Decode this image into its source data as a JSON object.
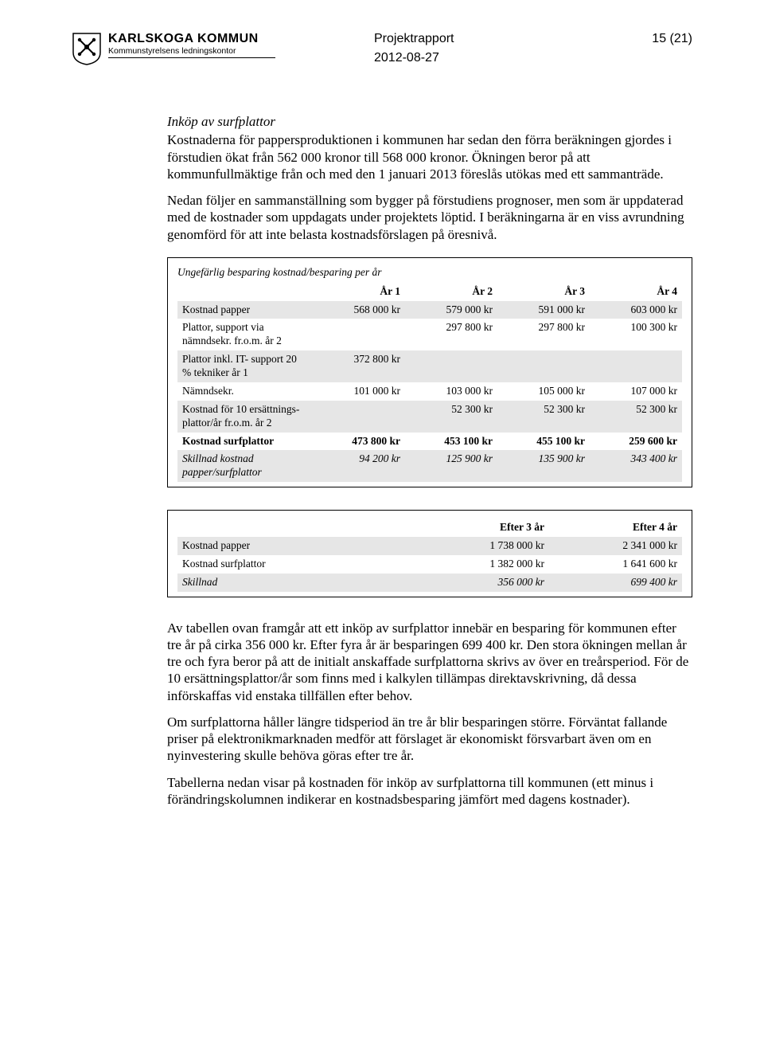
{
  "header": {
    "org_name": "KARLSKOGA KOMMUN",
    "org_unit": "Kommunstyrelsens ledningskontor",
    "doc_title": "Projektrapport",
    "page": "15 (21)",
    "date": "2012-08-27"
  },
  "section_title": "Inköp av surfplattor",
  "para1": "Kostnaderna för pappersproduktionen i kommunen har sedan den förra beräkningen gjordes i förstudien ökat från 562 000 kronor till 568 000 kronor. Ökningen beror på att kommunfullmäktige från och med den 1 januari 2013 föreslås utökas med ett sammanträde.",
  "para2": "Nedan följer en sammanställning som bygger på förstudiens prognoser, men som är uppdaterad med de kostnader som uppdagats under projektets löptid. I beräkningarna är en viss avrundning genomförd för att inte belasta kostnadsförslagen på öresnivå.",
  "table1": {
    "caption": "Ungefärlig besparing kostnad/besparing per år",
    "headers": [
      "",
      "År 1",
      "År 2",
      "År 3",
      "År 4"
    ],
    "rows": [
      {
        "label": "Kostnad papper",
        "cells": [
          "568 000 kr",
          "579 000 kr",
          "591 000 kr",
          "603 000 kr"
        ],
        "shaded": true,
        "bold": false
      },
      {
        "label": "Plattor, support via nämndsekr. fr.o.m. år 2",
        "cells": [
          "",
          "297 800 kr",
          "297 800 kr",
          "100 300 kr"
        ],
        "shaded": false,
        "bold": false
      },
      {
        "label": "Plattor inkl. IT- support 20 % tekniker år 1",
        "cells": [
          "372 800 kr",
          "",
          "",
          ""
        ],
        "shaded": true,
        "bold": false
      },
      {
        "label": "Nämndsekr.",
        "cells": [
          "101 000 kr",
          "103 000 kr",
          "105 000 kr",
          "107 000 kr"
        ],
        "shaded": false,
        "bold": false
      },
      {
        "label": "Kostnad för 10 ersättnings-plattor/år fr.o.m. år 2",
        "cells": [
          "",
          "52 300 kr",
          "52 300 kr",
          "52 300 kr"
        ],
        "shaded": true,
        "bold": false
      },
      {
        "label": "Kostnad surfplattor",
        "cells": [
          "473 800 kr",
          "453 100 kr",
          "455 100 kr",
          "259 600 kr"
        ],
        "shaded": false,
        "bold": true
      },
      {
        "label": "Skillnad kostnad papper/surfplattor",
        "cells": [
          "94 200 kr",
          "125 900 kr",
          "135 900 kr",
          "343 400 kr"
        ],
        "shaded": true,
        "bold": false,
        "italic": true
      }
    ]
  },
  "table2": {
    "headers": [
      "",
      "Efter 3 år",
      "Efter 4 år"
    ],
    "rows": [
      {
        "label": "Kostnad papper",
        "cells": [
          "1 738 000 kr",
          "2 341 000 kr"
        ],
        "shaded": true,
        "bold": false
      },
      {
        "label": "Kostnad surfplattor",
        "cells": [
          "1 382 000 kr",
          "1 641 600 kr"
        ],
        "shaded": false,
        "bold": false
      },
      {
        "label": "Skillnad",
        "cells": [
          "356 000 kr",
          "699 400 kr"
        ],
        "shaded": true,
        "bold": false,
        "italic": true
      }
    ]
  },
  "para3": "Av tabellen ovan framgår att ett inköp av surfplattor innebär en besparing för kommunen efter tre år på cirka 356 000 kr. Efter fyra år är besparingen 699 400 kr. Den stora ökningen mellan år tre och fyra beror på att de initialt anskaffade surfplattorna skrivs av över en treårsperiod. För de 10 ersättningsplattor/år som finns med i kalkylen tillämpas direktavskrivning, då dessa införskaffas vid enstaka tillfällen efter behov.",
  "para4": "Om surfplattorna håller längre tidsperiod än tre år blir besparingen större. Förväntat fallande priser på elektronikmarknaden medför att förslaget är ekonomiskt försvarbart även om en nyinvestering skulle behöva göras efter tre år.",
  "para5": "Tabellerna nedan visar på kostnaden för inköp av surfplattorna till kommunen (ett minus i förändringskolumnen indikerar en kostnadsbesparing jämfört med dagens kostnader)."
}
